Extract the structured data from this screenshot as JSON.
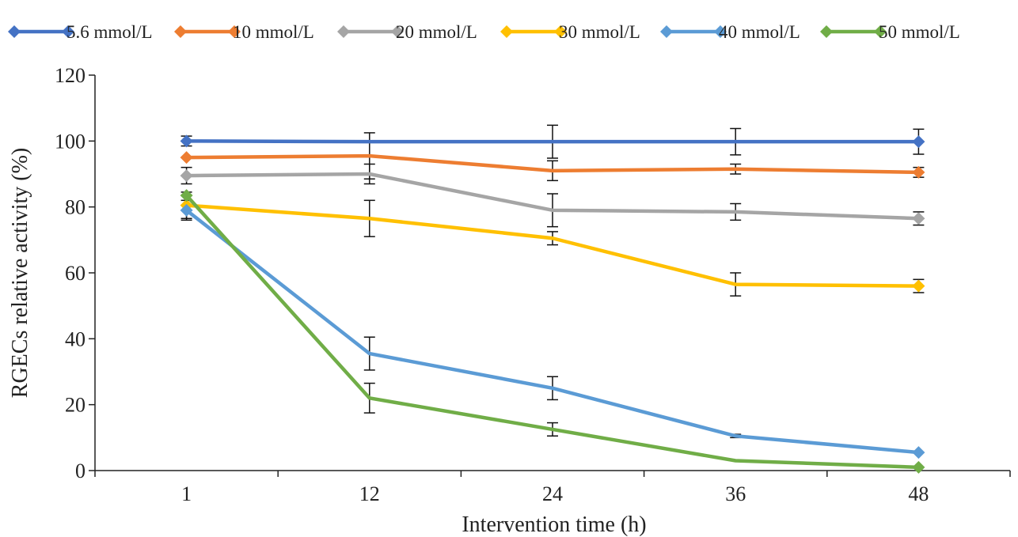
{
  "chart_data": {
    "type": "line",
    "title": "",
    "xlabel": "Intervention time (h)",
    "ylabel": "RGECs relative activity (%)",
    "x": [
      1,
      12,
      24,
      36,
      48
    ],
    "ylim": [
      0,
      120
    ],
    "yticks": [
      0,
      20,
      40,
      60,
      80,
      100,
      120
    ],
    "grid": false,
    "legend_position": "top",
    "error_bars": true,
    "series": [
      {
        "name": "5.6 mmol/L",
        "color": "#4472C4",
        "marker": "diamond",
        "values": [
          100,
          99.8,
          99.8,
          99.8,
          99.8
        ],
        "errors": [
          1.5,
          0,
          5,
          4,
          3.8
        ]
      },
      {
        "name": "10 mmol/L",
        "color": "#ED7D31",
        "marker": "diamond",
        "values": [
          95,
          95.5,
          91,
          91.5,
          90.5
        ],
        "errors": [
          0,
          7,
          3,
          1.5,
          1.5
        ]
      },
      {
        "name": "20 mmol/L",
        "color": "#A5A5A5",
        "marker": "diamond",
        "values": [
          89.5,
          90,
          79,
          78.5,
          76.5
        ],
        "errors": [
          2.5,
          3,
          5,
          2.5,
          2
        ]
      },
      {
        "name": "30 mmol/L",
        "color": "#FFC000",
        "marker": "diamond",
        "values": [
          80.5,
          76.5,
          70.5,
          56.5,
          56
        ],
        "errors": [
          4,
          5.5,
          2,
          3.5,
          2
        ]
      },
      {
        "name": "40 mmol/L",
        "color": "#5B9BD5",
        "marker": "diamond",
        "values": [
          79,
          35.5,
          25,
          10.5,
          5.5
        ],
        "errors": [
          3,
          5,
          3.5,
          0.5,
          0
        ]
      },
      {
        "name": "50 mmol/L",
        "color": "#70AD47",
        "marker": "diamond",
        "values": [
          83.5,
          22,
          12.5,
          3,
          1
        ],
        "errors": [
          0,
          4.5,
          2,
          0,
          0
        ]
      }
    ]
  }
}
